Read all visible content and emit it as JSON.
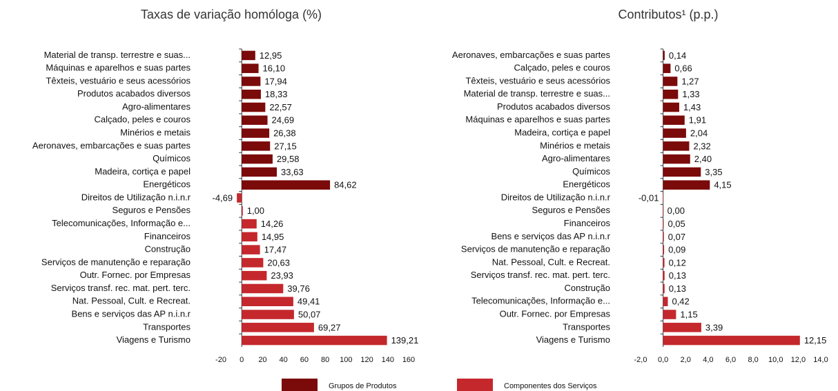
{
  "chart_data": [
    {
      "type": "bar",
      "subtitle": "Taxas de variação homóloga (%)",
      "categories": [
        "Material de transp. terrestre e suas...",
        "Máquinas e aparelhos e suas partes",
        "Têxteis, vestuário e seus acessórios",
        "Produtos acabados diversos",
        "Agro-alimentares",
        "Calçado, peles e couros",
        "Minérios e metais",
        "Aeronaves, embarcações e suas partes",
        "Químicos",
        "Madeira, cortiça e papel",
        "Energéticos",
        "Direitos de Utilização n.i.n.r",
        "Seguros e Pensões",
        "Telecomunicações, Informação e...",
        "Financeiros",
        "Construção",
        "Serviços de manutenção e reparação",
        "Outr. Fornec. por Empresas",
        "Serviços transf. rec. mat. pert. terc.",
        "Nat. Pessoal, Cult. e Recreat.",
        "Bens e serviços das AP n.i.n.r",
        "Transportes",
        "Viagens e Turismo"
      ],
      "series": [
        {
          "values": [
            12.95,
            16.1,
            17.94,
            18.33,
            22.57,
            24.69,
            26.38,
            27.15,
            29.58,
            33.63,
            84.62,
            null,
            null,
            null,
            null,
            null,
            null,
            null,
            null,
            null,
            null,
            null,
            null
          ],
          "value_labels": [
            "12,95",
            "16,10",
            "17,94",
            "18,33",
            "22,57",
            "24,69",
            "26,38",
            "27,15",
            "29,58",
            "33,63",
            "84,62",
            null,
            null,
            null,
            null,
            null,
            null,
            null,
            null,
            null,
            null,
            null,
            null
          ]
        },
        {
          "values": [
            null,
            null,
            null,
            null,
            null,
            null,
            null,
            null,
            null,
            null,
            null,
            -4.69,
            1.0,
            14.26,
            14.95,
            17.47,
            20.63,
            23.93,
            39.76,
            49.41,
            50.07,
            69.27,
            139.21
          ],
          "value_labels": [
            null,
            null,
            null,
            null,
            null,
            null,
            null,
            null,
            null,
            null,
            null,
            "-4,69",
            "1,00",
            "14,26",
            "14,95",
            "17,47",
            "20,63",
            "23,93",
            "39,76",
            "49,41",
            "50,07",
            "69,27",
            "139,21"
          ]
        }
      ],
      "xlim": [
        -20,
        160
      ],
      "xticks": [
        -20,
        0,
        20,
        40,
        60,
        80,
        100,
        120,
        140,
        160
      ]
    },
    {
      "type": "bar",
      "subtitle": "Contributos¹ (p.p.)",
      "categories": [
        "Aeronaves, embarcações e suas partes",
        "Calçado, peles e couros",
        "Têxteis, vestuário e seus acessórios",
        "Material de transp. terrestre e suas...",
        "Produtos acabados diversos",
        "Máquinas e aparelhos e suas partes",
        "Madeira, cortiça e papel",
        "Minérios e metais",
        "Agro-alimentares",
        "Químicos",
        "Energéticos",
        "Direitos de Utilização n.i.n.r",
        "Seguros e Pensões",
        "Financeiros",
        "Bens e serviços das AP n.i.n.r",
        "Serviços de manutenção e reparação",
        "Nat. Pessoal, Cult. e Recreat.",
        "Serviços transf. rec. mat. pert. terc.",
        "Construção",
        "Telecomunicações, Informação e...",
        "Outr. Fornec. por Empresas",
        "Transportes",
        "Viagens e Turismo"
      ],
      "series": [
        {
          "values": [
            0.14,
            0.66,
            1.27,
            1.33,
            1.43,
            1.91,
            2.04,
            2.32,
            2.4,
            3.35,
            4.15,
            null,
            null,
            null,
            null,
            null,
            null,
            null,
            null,
            null,
            null,
            null,
            null
          ],
          "value_labels": [
            "0,14",
            "0,66",
            "1,27",
            "1,33",
            "1,43",
            "1,91",
            "2,04",
            "2,32",
            "2,40",
            "3,35",
            "4,15",
            null,
            null,
            null,
            null,
            null,
            null,
            null,
            null,
            null,
            null,
            null,
            null
          ]
        },
        {
          "values": [
            null,
            null,
            null,
            null,
            null,
            null,
            null,
            null,
            null,
            null,
            null,
            -0.01,
            0.0,
            0.05,
            0.07,
            0.09,
            0.12,
            0.13,
            0.13,
            0.42,
            1.15,
            3.39,
            12.15
          ],
          "value_labels": [
            null,
            null,
            null,
            null,
            null,
            null,
            null,
            null,
            null,
            null,
            null,
            "-0,01",
            "0,00",
            "0,05",
            "0,07",
            "0,09",
            "0,12",
            "0,13",
            "0,13",
            "0,42",
            "1,15",
            "3,39",
            "12,15"
          ]
        }
      ],
      "xlim": [
        -2,
        14
      ],
      "xticks": [
        {
          "value": -2,
          "label": "-2,0"
        },
        {
          "value": 0,
          "label": "0,0"
        },
        {
          "value": 2,
          "label": "2,0"
        },
        {
          "value": 4,
          "label": "4,0"
        },
        {
          "value": 6,
          "label": "6,0"
        },
        {
          "value": 8,
          "label": "8,0"
        },
        {
          "value": 10,
          "label": "10,0"
        },
        {
          "value": 12,
          "label": "12,0"
        },
        {
          "value": 14,
          "label": "14,0"
        }
      ]
    }
  ],
  "legend": [
    {
      "name": "Grupos de Produtos",
      "color": "#7b0a0a"
    },
    {
      "name": "Componentes dos Serviços",
      "color": "#c4282d"
    }
  ]
}
